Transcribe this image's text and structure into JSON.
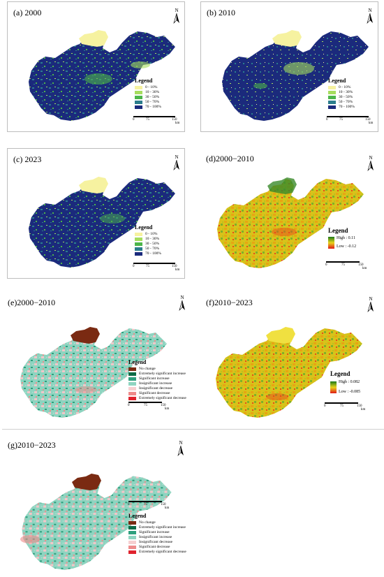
{
  "panels": {
    "a": {
      "title": "(a) 2000"
    },
    "b": {
      "title": "(b) 2010"
    },
    "c": {
      "title": "(c) 2023"
    },
    "d": {
      "title": "(d)2000−2010"
    },
    "e": {
      "title": "(e)2000−2010"
    },
    "f": {
      "title": "(f)2010−2023"
    },
    "g": {
      "title": "(g)2010−2023"
    }
  },
  "north_label": "N",
  "legend_title": "Legend",
  "fvc_classes": [
    {
      "label": "0 - 10%",
      "color": "#f6f2a0"
    },
    {
      "label": "10 - 30%",
      "color": "#a6dd5e"
    },
    {
      "label": "30 - 50%",
      "color": "#4cb54a"
    },
    {
      "label": "50 - 70%",
      "color": "#2b7d8c"
    },
    {
      "label": "70 - 100%",
      "color": "#1b2a7c"
    }
  ],
  "trend_classes": [
    {
      "label": "No change",
      "color": "#7a2a12"
    },
    {
      "label": "Extremely significant increase",
      "color": "#0b6b46"
    },
    {
      "label": "Significant increase",
      "color": "#2fa07e"
    },
    {
      "label": "Insignificant increase",
      "color": "#8ed4c0"
    },
    {
      "label": "Insignificant decrease",
      "color": "#f6cfd0"
    },
    {
      "label": "Significant decrease",
      "color": "#ee8b8b"
    },
    {
      "label": "Extremely significant decrease",
      "color": "#e0232e"
    }
  ],
  "slope_d": {
    "high": "High : 0.11",
    "low": "Low : -0.12"
  },
  "slope_f": {
    "high": "High : 0.082",
    "low": "Low : -0.085"
  },
  "scale_small": {
    "t0": "0",
    "t1": "75",
    "t2": "150",
    "unit": "km"
  },
  "scale_large": {
    "t0": "0",
    "t1": "75",
    "t2": "150",
    "unit": "km"
  }
}
